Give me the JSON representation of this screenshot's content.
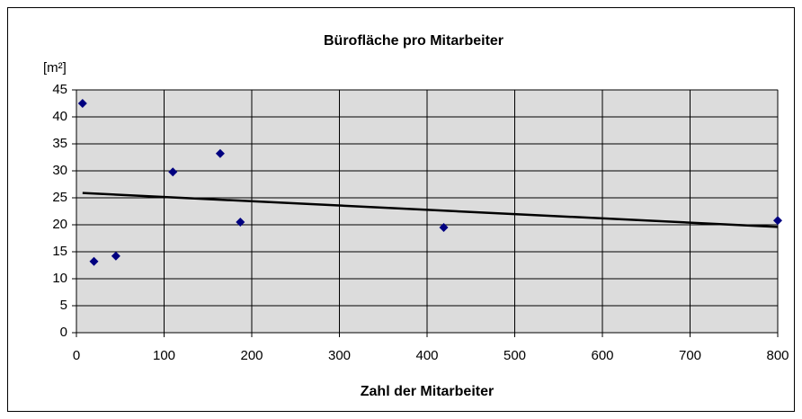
{
  "chart_data": {
    "type": "scatter",
    "title": "Bürofläche pro Mitarbeiter",
    "x_label": "Zahl der Mitarbeiter",
    "y_label": "[m²]",
    "series": [
      {
        "name": "Bürofläche",
        "color": "#000080",
        "x": [
          7,
          20,
          45,
          110,
          164,
          187,
          419,
          800
        ],
        "values": [
          42.5,
          13.2,
          14.2,
          29.8,
          33.2,
          20.5,
          19.5,
          20.8
        ]
      }
    ],
    "trendline": {
      "color": "#000000",
      "x": [
        7,
        800
      ],
      "values": [
        25.9,
        19.6
      ]
    },
    "xlim": [
      0,
      800
    ],
    "xticks": [
      0,
      100,
      200,
      300,
      400,
      500,
      600,
      700,
      800
    ],
    "ylim": [
      0,
      45
    ],
    "yticks": [
      0,
      5,
      10,
      15,
      20,
      25,
      30,
      35,
      40,
      45
    ],
    "grid": true
  }
}
